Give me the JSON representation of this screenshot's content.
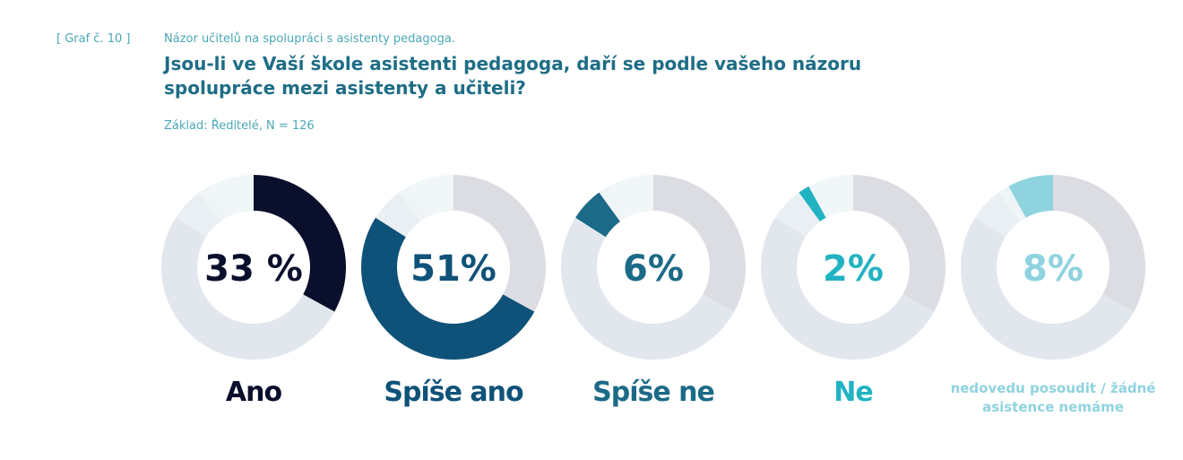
{
  "header": {
    "graf": "[ Graf č. 10 ]",
    "subtitle": "Názor učitelů na spolupráci s asistenty pedagoga.",
    "title": "Jsou-li ve Vaší škole asistenti pedagoga, daří se podle vašeho názoru spolupráce mezi asistenty a učiteli?",
    "base": "Základ: Ředitelé, N = 126"
  },
  "chart_data": {
    "type": "pie",
    "title": "Jsou-li ve Vaší škole asistenti pedagoga, daří se podle vašeho názoru spolupráce mezi asistenty a učiteli?",
    "categories": [
      "Ano",
      "Spíše ano",
      "Spíše ne",
      "Ne",
      "nedovedu posoudit / žádné asistence nemáme"
    ],
    "values": [
      33,
      51,
      6,
      2,
      8
    ],
    "value_labels": [
      "33 %",
      "51%",
      "6%",
      "2%",
      "8%"
    ],
    "colors": [
      "#0a0f2c",
      "#0f5279",
      "#1b6a87",
      "#22b3c3",
      "#8fd3df"
    ],
    "light_colors": [
      "#dcdde3",
      "#e2e7ee",
      "#e9eff3",
      "#eef4f7",
      "#f1f7f9"
    ]
  }
}
